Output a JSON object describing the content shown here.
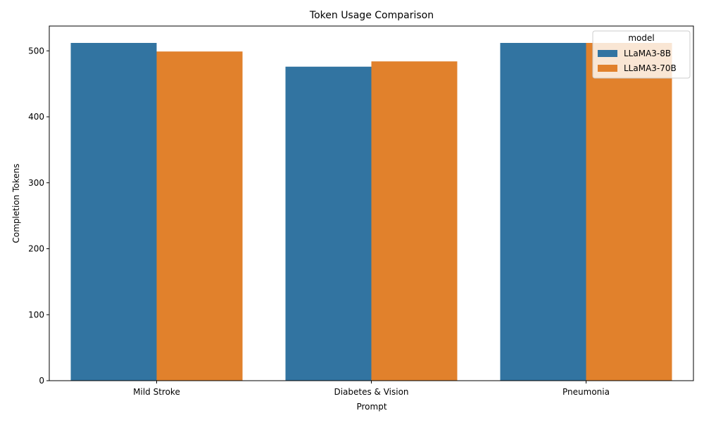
{
  "chart_data": {
    "type": "bar",
    "title": "Token Usage Comparison",
    "xlabel": "Prompt",
    "ylabel": "Completion Tokens",
    "categories": [
      "Mild Stroke",
      "Diabetes & Vision",
      "Pneumonia"
    ],
    "series": [
      {
        "name": "LLaMA3-8B",
        "color": "#3274a1",
        "values": [
          512,
          476,
          512
        ]
      },
      {
        "name": "LLaMA3-70B",
        "color": "#e1812c",
        "values": [
          499,
          484,
          512
        ]
      }
    ],
    "ylim": [
      0,
      537.6
    ],
    "yticks": [
      0,
      100,
      200,
      300,
      400,
      500
    ],
    "legend": {
      "title": "model",
      "position": "top-right"
    },
    "grid": false
  }
}
